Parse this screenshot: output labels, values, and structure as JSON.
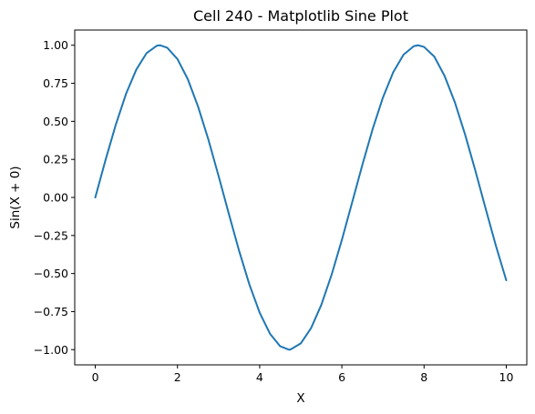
{
  "chart_data": {
    "type": "line",
    "title": "Cell 240 - Matplotlib Sine Plot",
    "xlabel": "X",
    "ylabel": "Sin(X + 0)",
    "xlim": [
      -0.5,
      10.5
    ],
    "ylim": [
      -1.1,
      1.1
    ],
    "grid": false,
    "x_ticks": [
      0,
      2,
      4,
      6,
      8,
      10
    ],
    "x_tick_labels": [
      "0",
      "2",
      "4",
      "6",
      "8",
      "10"
    ],
    "y_ticks": [
      1.0,
      0.75,
      0.5,
      0.25,
      0.0,
      -0.25,
      -0.5,
      -0.75,
      -1.0
    ],
    "y_tick_labels": [
      "1.00",
      "0.75",
      "0.50",
      "0.25",
      "0.00",
      "−0.25",
      "−0.50",
      "−0.75",
      "−1.00"
    ],
    "series": [
      {
        "color": "#1f77b4",
        "x": [
          0,
          0.25,
          0.5,
          0.75,
          1,
          1.25,
          1.5,
          1.571,
          1.75,
          2,
          2.25,
          2.5,
          2.75,
          3,
          3.25,
          3.5,
          3.75,
          4,
          4.25,
          4.5,
          4.712,
          4.75,
          5,
          5.25,
          5.5,
          5.75,
          6,
          6.25,
          6.5,
          6.75,
          7,
          7.25,
          7.5,
          7.75,
          7.854,
          8,
          8.25,
          8.5,
          8.75,
          9,
          9.25,
          9.5,
          9.75,
          10
        ],
        "y": [
          0,
          0.247,
          0.479,
          0.682,
          0.841,
          0.949,
          0.997,
          1.0,
          0.984,
          0.909,
          0.778,
          0.598,
          0.382,
          0.141,
          -0.108,
          -0.351,
          -0.572,
          -0.757,
          -0.895,
          -0.978,
          -1.0,
          -0.999,
          -0.959,
          -0.859,
          -0.706,
          -0.508,
          -0.279,
          -0.033,
          0.215,
          0.45,
          0.657,
          0.823,
          0.938,
          0.994,
          1.0,
          0.989,
          0.925,
          0.798,
          0.625,
          0.412,
          0.174,
          -0.075,
          -0.319,
          -0.544
        ]
      }
    ]
  }
}
